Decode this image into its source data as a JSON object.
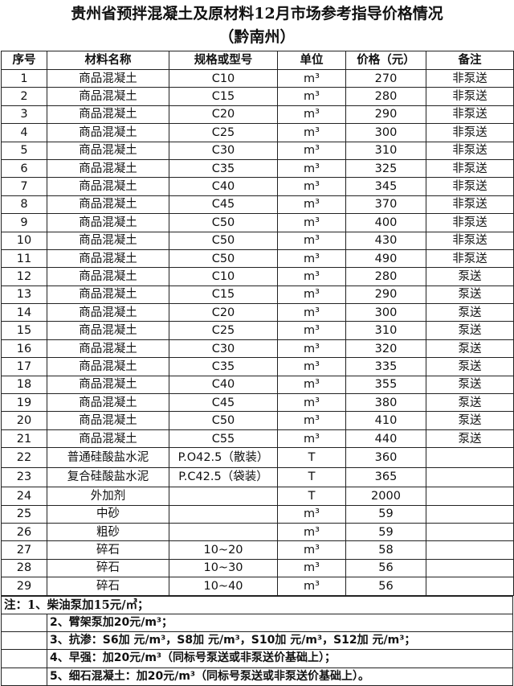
{
  "title": {
    "line1": "贵州省预拌混凝土及原材料12月市场参考指导价格情况",
    "line2": "（黔南州）"
  },
  "headers": [
    "序号",
    "材料名称",
    "规格或型号",
    "单位",
    "价格（元）",
    "备注"
  ],
  "rows": [
    [
      "1",
      "商品混凝土",
      "C10",
      "m³",
      "270",
      "非泵送"
    ],
    [
      "2",
      "商品混凝土",
      "C15",
      "m³",
      "280",
      "非泵送"
    ],
    [
      "3",
      "商品混凝土",
      "C20",
      "m³",
      "290",
      "非泵送"
    ],
    [
      "4",
      "商品混凝土",
      "C25",
      "m³",
      "300",
      "非泵送"
    ],
    [
      "5",
      "商品混凝土",
      "C30",
      "m³",
      "310",
      "非泵送"
    ],
    [
      "6",
      "商品混凝土",
      "C35",
      "m³",
      "325",
      "非泵送"
    ],
    [
      "7",
      "商品混凝土",
      "C40",
      "m³",
      "345",
      "非泵送"
    ],
    [
      "8",
      "商品混凝土",
      "C45",
      "m³",
      "370",
      "非泵送"
    ],
    [
      "9",
      "商品混凝土",
      "C50",
      "m³",
      "400",
      "非泵送"
    ],
    [
      "10",
      "商品混凝土",
      "C50",
      "m³",
      "430",
      "非泵送"
    ],
    [
      "11",
      "商品混凝土",
      "C50",
      "m³",
      "490",
      "非泵送"
    ],
    [
      "12",
      "商品混凝土",
      "C10",
      "m³",
      "280",
      "泵送"
    ],
    [
      "13",
      "商品混凝土",
      "C15",
      "m³",
      "290",
      "泵送"
    ],
    [
      "14",
      "商品混凝土",
      "C20",
      "m³",
      "300",
      "泵送"
    ],
    [
      "15",
      "商品混凝土",
      "C25",
      "m³",
      "310",
      "泵送"
    ],
    [
      "16",
      "商品混凝土",
      "C30",
      "m³",
      "320",
      "泵送"
    ],
    [
      "17",
      "商品混凝土",
      "C35",
      "m³",
      "335",
      "泵送"
    ],
    [
      "18",
      "商品混凝土",
      "C40",
      "m³",
      "355",
      "泵送"
    ],
    [
      "19",
      "商品混凝土",
      "C45",
      "m³",
      "380",
      "泵送"
    ],
    [
      "20",
      "商品混凝土",
      "C50",
      "m³",
      "410",
      "泵送"
    ],
    [
      "21",
      "商品混凝土",
      "C55",
      "m³",
      "440",
      "泵送"
    ],
    [
      "22",
      "普通硅酸盐水泥",
      "P.O42.5（散装）",
      "T",
      "360",
      ""
    ],
    [
      "23",
      "复合硅酸盐水泥",
      "P.C42.5（袋装）",
      "T",
      "365",
      ""
    ],
    [
      "24",
      "外加剂",
      "",
      "T",
      "2000",
      ""
    ],
    [
      "25",
      "中砂",
      "",
      "m³",
      "59",
      ""
    ],
    [
      "26",
      "粗砂",
      "",
      "m³",
      "59",
      ""
    ],
    [
      "27",
      "碎石",
      "10~20",
      "m³",
      "58",
      ""
    ],
    [
      "28",
      "碎石",
      "10~30",
      "m³",
      "56",
      ""
    ],
    [
      "29",
      "碎石",
      "10~40",
      "m³",
      "56",
      ""
    ]
  ],
  "notes": [
    "注：1、柴油泵加15元/㎥；",
    "2、臂架泵加20元/m³；",
    "3、抗渗：S6加 元/m³，S8加 元/m³，S10加  元/m³，S12加 元/m³；",
    "4、早强：加20元/m³（同标号泵送或非泵送价基础上）；",
    "5、细石混凝土：加20元/m³（同标号泵送或非泵送价基础上）。"
  ]
}
